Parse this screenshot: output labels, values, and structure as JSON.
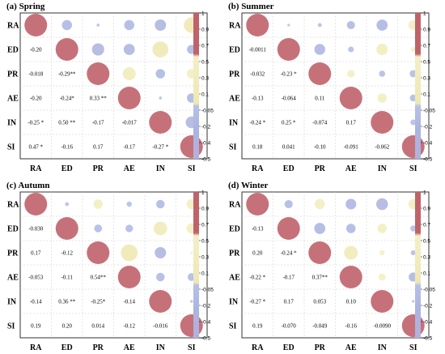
{
  "colors": {
    "positive": "#c0626a",
    "mid_pos": "#f4f1c6",
    "mid_neg": "#b9c2e6",
    "negative": "#b3b1dd",
    "border": "#333333"
  },
  "chart_data": [
    {
      "type": "heatmap",
      "title": "(a) Spring",
      "labels": [
        "RA",
        "ED",
        "PR",
        "AE",
        "IN",
        "SI"
      ],
      "colorbar_ticks": [
        "1",
        "0.9",
        "0.7",
        "0.5",
        "0.3",
        "0.1",
        "-0.05",
        "-0.2",
        "-0.4",
        "-0.5"
      ],
      "matrix": [
        [
          1,
          -0.2,
          -0.018,
          -0.2,
          -0.25,
          0.47
        ],
        [
          -0.2,
          1,
          -0.29,
          -0.24,
          0.5,
          -0.16
        ],
        [
          -0.018,
          -0.29,
          1,
          0.33,
          -0.17,
          0.17
        ],
        [
          -0.2,
          -0.24,
          0.33,
          1,
          -0.017,
          -0.17
        ],
        [
          -0.25,
          0.5,
          -0.17,
          -0.017,
          1,
          -0.27
        ],
        [
          0.47,
          -0.16,
          0.17,
          -0.17,
          -0.27,
          1
        ]
      ],
      "lower_text": [
        [
          "-0.20"
        ],
        [
          "-0.018",
          "-0.29**"
        ],
        [
          "-0.20",
          "-0.24*",
          "0.33 **"
        ],
        [
          "-0.25 *",
          "0.50 **",
          "-0.17",
          "-0.017"
        ],
        [
          "0.47 *",
          "-0.16",
          "0.17",
          "-0.17",
          "-0.27 *"
        ]
      ]
    },
    {
      "type": "heatmap",
      "title": "(b) Summer",
      "labels": [
        "RA",
        "ED",
        "PR",
        "AE",
        "IN",
        "SI"
      ],
      "colorbar_ticks": [
        "1",
        "0.9",
        "0.7",
        "0.5",
        "0.3",
        "0.1",
        "-0.05",
        "-0.2",
        "-0.4",
        "-0.5"
      ],
      "matrix": [
        [
          1,
          -0.0011,
          -0.032,
          -0.13,
          -0.24,
          0.18
        ],
        [
          -0.0011,
          1,
          -0.23,
          -0.064,
          0.25,
          0.041
        ],
        [
          -0.032,
          -0.23,
          1,
          0.11,
          -0.074,
          -0.1
        ],
        [
          -0.13,
          -0.064,
          0.11,
          1,
          0.17,
          -0.091
        ],
        [
          -0.24,
          0.25,
          -0.074,
          0.17,
          1,
          -0.062
        ],
        [
          0.18,
          0.041,
          -0.1,
          -0.091,
          -0.062,
          1
        ]
      ],
      "lower_text": [
        [
          "-0.0011"
        ],
        [
          "-0.032",
          "-0.23 *"
        ],
        [
          "-0.13",
          "-0.064",
          "0.11"
        ],
        [
          "-0.24 *",
          "0.25 *",
          "-0.074",
          "0.17"
        ],
        [
          "0.18",
          "0.041",
          "-0.10",
          "-0.091",
          "-0.062"
        ]
      ]
    },
    {
      "type": "heatmap",
      "title": "(c) Autumn",
      "labels": [
        "RA",
        "ED",
        "PR",
        "AE",
        "IN",
        "SI"
      ],
      "colorbar_ticks": [
        "1",
        "0.9",
        "0.7",
        "0.5",
        "0.3",
        "0.1",
        "-0.05",
        "-0.2",
        "-0.4",
        "-0.5"
      ],
      "matrix": [
        [
          1,
          -0.03,
          0.17,
          -0.053,
          -0.14,
          0.19
        ],
        [
          -0.03,
          1,
          -0.12,
          -0.11,
          0.36,
          0.2
        ],
        [
          0.17,
          -0.12,
          1,
          0.54,
          -0.25,
          0.014
        ],
        [
          -0.053,
          -0.11,
          0.54,
          1,
          -0.14,
          -0.12
        ],
        [
          -0.14,
          0.36,
          -0.25,
          -0.14,
          1,
          -0.016
        ],
        [
          0.19,
          0.2,
          0.014,
          -0.12,
          -0.016,
          1
        ]
      ],
      "lower_text": [
        [
          "-0.030"
        ],
        [
          "0.17",
          "-0.12"
        ],
        [
          "-0.053",
          "-0.11",
          "0.54**"
        ],
        [
          "-0.14",
          "0.36 **",
          "-0.25*",
          "-0.14"
        ],
        [
          "0.19",
          "0.20",
          "0.014",
          "-0.12",
          "-0.016"
        ]
      ]
    },
    {
      "type": "heatmap",
      "title": "(d) Winter",
      "labels": [
        "RA",
        "ED",
        "PR",
        "AE",
        "IN",
        "SI"
      ],
      "colorbar_ticks": [
        "1",
        "0.9",
        "0.7",
        "0.5",
        "0.3",
        "0.1",
        "-0.05",
        "-0.2",
        "-0.4",
        "-0.5"
      ],
      "matrix": [
        [
          1,
          -0.13,
          0.2,
          -0.22,
          -0.27,
          0.19
        ],
        [
          -0.13,
          1,
          -0.24,
          -0.17,
          0.17,
          -0.07
        ],
        [
          0.2,
          -0.24,
          1,
          0.37,
          0.053,
          -0.049
        ],
        [
          -0.22,
          -0.17,
          0.37,
          1,
          0.1,
          -0.16
        ],
        [
          -0.27,
          0.17,
          0.053,
          0.1,
          1,
          -0.009
        ],
        [
          0.19,
          -0.07,
          -0.049,
          -0.16,
          -0.009,
          1
        ]
      ],
      "lower_text": [
        [
          "-0.13"
        ],
        [
          "0.20",
          "-0.24 *"
        ],
        [
          "-0.22 *",
          "-0.17",
          "0.37**"
        ],
        [
          "-0.27 *",
          "0.17",
          "0.053",
          "0.10"
        ],
        [
          "0.19",
          "-0.070",
          "-0.049",
          "-0.16",
          "-0.0090"
        ]
      ]
    }
  ]
}
